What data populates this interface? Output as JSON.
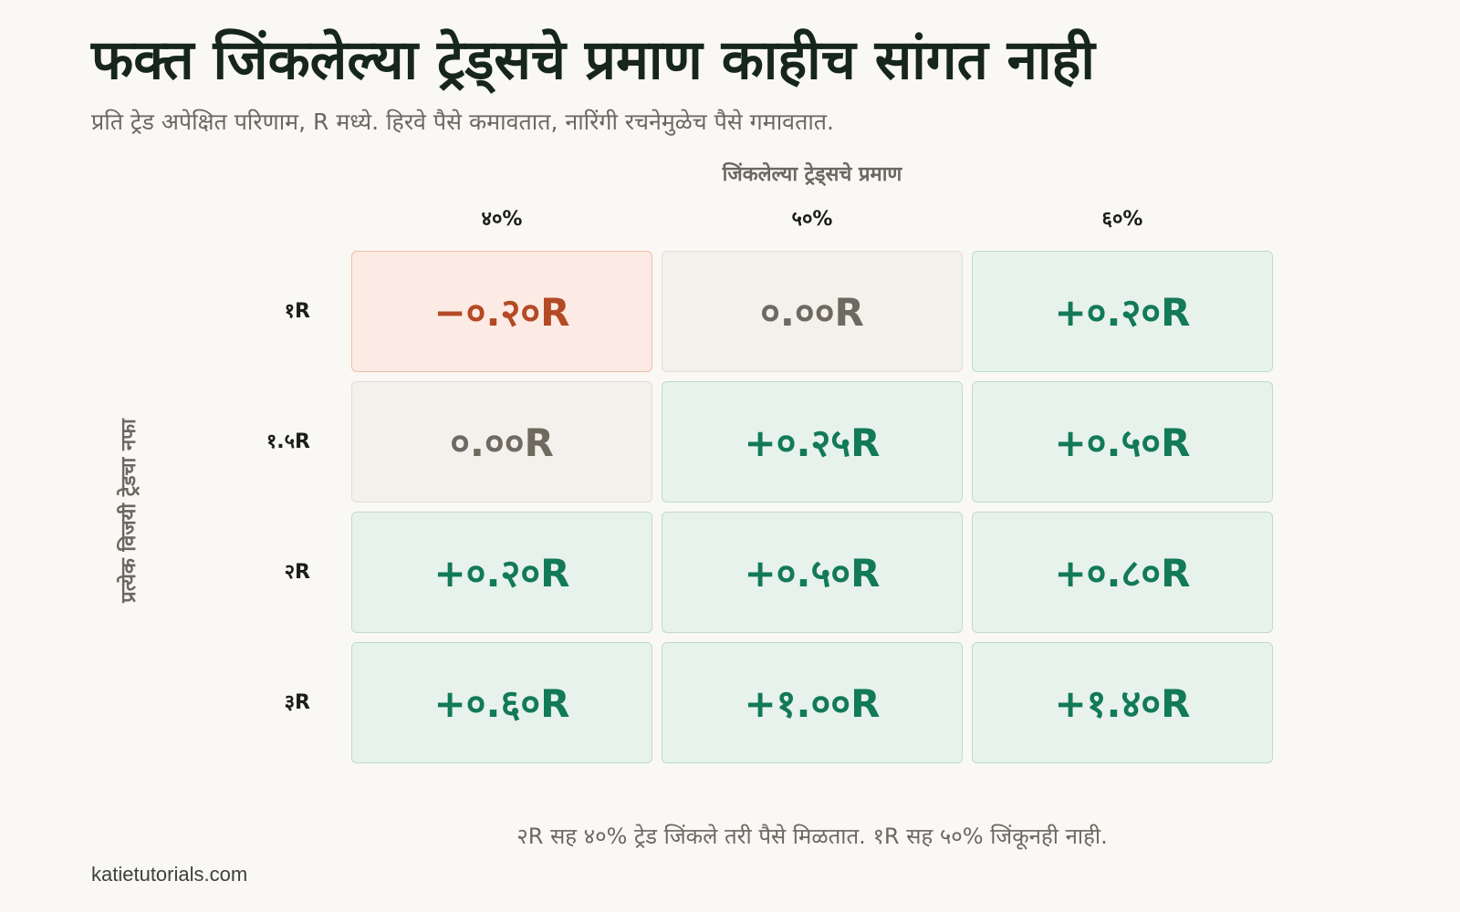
{
  "title": "फक्त जिंकलेल्या ट्रेड्सचे प्रमाण काहीच सांगत नाही",
  "subtitle": "प्रति ट्रेड अपेक्षित परिणाम, R मध्ये. हिरवे पैसे कमावतात, नारिंगी रचनेमुळेच पैसे गमावतात.",
  "footnote": "२R सह ४०% ट्रेड जिंकले तरी पैसे मिळतात. १R सह ५०% जिंकूनही नाही.",
  "source": "katietutorials.com",
  "colors": {
    "positive_text": "#127a57",
    "positive_bg": "#e8f2ed",
    "zero_text": "#6f6a60",
    "zero_bg": "#f4f1ec",
    "negative_text": "#b44a25",
    "negative_bg": "#fcebe4"
  },
  "chart_data": {
    "type": "heatmap",
    "xlabel": "जिंकलेल्या ट्रेड्सचे प्रमाण",
    "ylabel": "प्रत्येक विजयी ट्रेडचा नफा",
    "x": [
      0.4,
      0.5,
      0.6
    ],
    "x_tick_labels": [
      "४०%",
      "५०%",
      "६०%"
    ],
    "y": [
      1,
      1.5,
      2,
      3
    ],
    "y_tick_labels": [
      "१R",
      "१.५R",
      "२R",
      "३R"
    ],
    "values": [
      [
        -0.2,
        0.0,
        0.2
      ],
      [
        0.0,
        0.25,
        0.5
      ],
      [
        0.2,
        0.5,
        0.8
      ],
      [
        0.6,
        1.0,
        1.4
      ]
    ],
    "cell_labels": [
      [
        "−०.२०R",
        "०.००R",
        "+०.२०R"
      ],
      [
        "०.००R",
        "+०.२५R",
        "+०.५०R"
      ],
      [
        "+०.२०R",
        "+०.५०R",
        "+०.८०R"
      ],
      [
        "+०.६०R",
        "+१.००R",
        "+१.४०R"
      ]
    ],
    "unit": "R"
  }
}
